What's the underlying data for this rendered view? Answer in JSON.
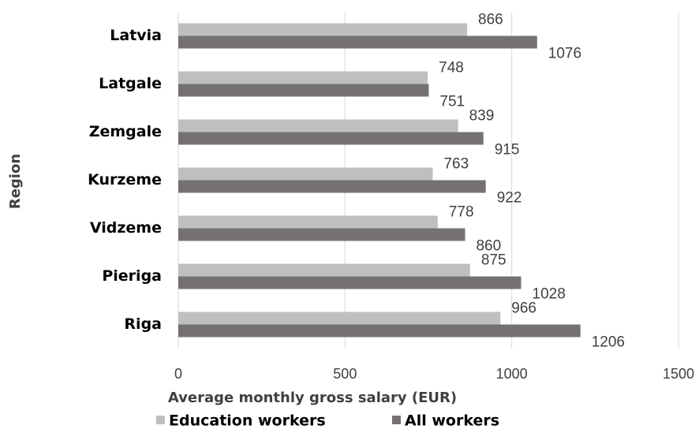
{
  "chart_data": {
    "type": "bar",
    "orientation": "horizontal",
    "y_label": "Region",
    "x_label": "Average monthly gross salary (EUR)",
    "categories": [
      "Latvia",
      "Latgale",
      "Zemgale",
      "Kurzeme",
      "Vidzeme",
      "Pieriga",
      "Riga"
    ],
    "series": [
      {
        "name": "Education workers",
        "color": "#bfbfbf",
        "values": [
          866,
          748,
          839,
          763,
          778,
          875,
          966
        ]
      },
      {
        "name": "All workers",
        "color": "#767171",
        "values": [
          1076,
          751,
          915,
          922,
          860,
          1028,
          1206
        ]
      }
    ],
    "xlim": [
      0,
      1500
    ],
    "xticks": [
      0,
      500,
      1000,
      1500
    ],
    "grid": true,
    "legend": "bottom"
  }
}
